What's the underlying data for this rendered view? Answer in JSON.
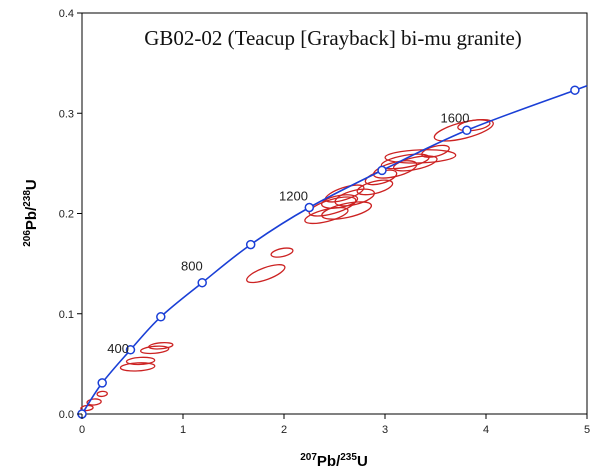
{
  "chart_data": {
    "type": "scatter",
    "title": "GB02-02 (Teacup [Grayback] bi-mu granite)",
    "xlabel": {
      "mass": "207",
      "num": "Pb/",
      "mass2": "235",
      "den": "U"
    },
    "ylabel": {
      "mass": "206",
      "num": "Pb/",
      "mass2": "238",
      "den": "U"
    },
    "xlim": [
      0,
      5
    ],
    "ylim": [
      0,
      0.4
    ],
    "x_ticks": [
      0,
      1,
      2,
      3,
      4,
      5
    ],
    "x_tick_labels": [
      "0",
      "1",
      "2",
      "3",
      "4",
      "5"
    ],
    "y_ticks": [
      0,
      0.1,
      0.2,
      0.3,
      0.4
    ],
    "y_tick_labels": [
      "0.0",
      "0.1",
      "0.2",
      "0.3",
      "0.4"
    ],
    "colors": {
      "concordia": "#1a3fd6",
      "ellipse": "#cc2222",
      "axis": "#000000"
    },
    "concordia_markers": [
      {
        "x": 0.0,
        "y": 0.0
      },
      {
        "x": 0.2,
        "y": 0.031
      },
      {
        "x": 0.48,
        "y": 0.064
      },
      {
        "x": 0.78,
        "y": 0.097
      },
      {
        "x": 1.19,
        "y": 0.131
      },
      {
        "x": 1.67,
        "y": 0.169
      },
      {
        "x": 2.25,
        "y": 0.206
      },
      {
        "x": 2.97,
        "y": 0.243
      },
      {
        "x": 3.81,
        "y": 0.283
      },
      {
        "x": 4.88,
        "y": 0.323
      }
    ],
    "age_labels": [
      {
        "text": "400",
        "x": 0.25,
        "y": 0.061
      },
      {
        "text": "800",
        "x": 0.98,
        "y": 0.143
      },
      {
        "text": "1200",
        "x": 1.95,
        "y": 0.213
      },
      {
        "text": "1600",
        "x": 3.55,
        "y": 0.291
      }
    ],
    "ellipses": [
      {
        "cx": 0.05,
        "cy": 0.006,
        "rx": 0.06,
        "ry": 0.0025,
        "rot": 5
      },
      {
        "cx": 0.12,
        "cy": 0.012,
        "rx": 0.07,
        "ry": 0.003,
        "rot": 5
      },
      {
        "cx": 0.2,
        "cy": 0.02,
        "rx": 0.05,
        "ry": 0.0025,
        "rot": 5
      },
      {
        "cx": 0.55,
        "cy": 0.047,
        "rx": 0.17,
        "ry": 0.004,
        "rot": 3
      },
      {
        "cx": 0.58,
        "cy": 0.053,
        "rx": 0.14,
        "ry": 0.0035,
        "rot": 3
      },
      {
        "cx": 0.72,
        "cy": 0.064,
        "rx": 0.14,
        "ry": 0.0035,
        "rot": 5
      },
      {
        "cx": 0.78,
        "cy": 0.068,
        "rx": 0.12,
        "ry": 0.003,
        "rot": 5
      },
      {
        "cx": 1.82,
        "cy": 0.14,
        "rx": 0.2,
        "ry": 0.006,
        "rot": 20
      },
      {
        "cx": 1.98,
        "cy": 0.161,
        "rx": 0.11,
        "ry": 0.004,
        "rot": 12
      },
      {
        "cx": 2.42,
        "cy": 0.198,
        "rx": 0.22,
        "ry": 0.006,
        "rot": 14
      },
      {
        "cx": 2.48,
        "cy": 0.207,
        "rx": 0.24,
        "ry": 0.007,
        "rot": 16
      },
      {
        "cx": 2.55,
        "cy": 0.212,
        "rx": 0.18,
        "ry": 0.006,
        "rot": 10
      },
      {
        "cx": 2.6,
        "cy": 0.22,
        "rx": 0.2,
        "ry": 0.006,
        "rot": 18
      },
      {
        "cx": 2.7,
        "cy": 0.216,
        "rx": 0.2,
        "ry": 0.007,
        "rot": 14
      },
      {
        "cx": 2.62,
        "cy": 0.203,
        "rx": 0.25,
        "ry": 0.007,
        "rot": 12
      },
      {
        "cx": 2.9,
        "cy": 0.226,
        "rx": 0.18,
        "ry": 0.006,
        "rot": 14
      },
      {
        "cx": 2.96,
        "cy": 0.236,
        "rx": 0.16,
        "ry": 0.006,
        "rot": 16
      },
      {
        "cx": 3.1,
        "cy": 0.244,
        "rx": 0.22,
        "ry": 0.007,
        "rot": 14
      },
      {
        "cx": 3.2,
        "cy": 0.252,
        "rx": 0.24,
        "ry": 0.006,
        "rot": 10
      },
      {
        "cx": 3.35,
        "cy": 0.257,
        "rx": 0.35,
        "ry": 0.0065,
        "rot": 2
      },
      {
        "cx": 3.3,
        "cy": 0.25,
        "rx": 0.22,
        "ry": 0.006,
        "rot": 12
      },
      {
        "cx": 3.5,
        "cy": 0.262,
        "rx": 0.14,
        "ry": 0.005,
        "rot": 14
      },
      {
        "cx": 3.78,
        "cy": 0.283,
        "rx": 0.3,
        "ry": 0.008,
        "rot": 14
      },
      {
        "cx": 3.88,
        "cy": 0.288,
        "rx": 0.16,
        "ry": 0.005,
        "rot": 8
      }
    ]
  }
}
